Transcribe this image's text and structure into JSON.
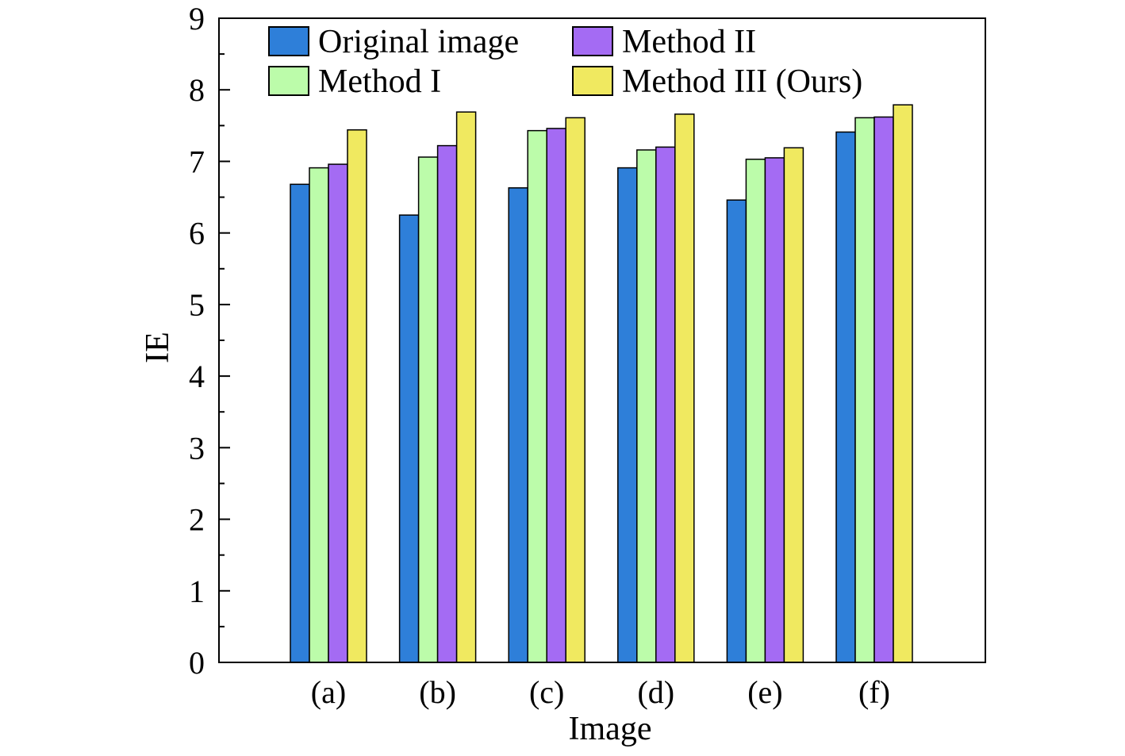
{
  "chart_data": {
    "type": "bar",
    "title": "",
    "xlabel": "Image",
    "ylabel": "IE",
    "ylim": [
      0,
      9
    ],
    "yticks": [
      "0",
      "1",
      "2",
      "3",
      "4",
      "5",
      "6",
      "7",
      "8",
      "9"
    ],
    "categories": [
      "(a)",
      "(b)",
      "(c)",
      "(d)",
      "(e)",
      "(f)"
    ],
    "series": [
      {
        "name": "Original image",
        "color": "#2e7fd9",
        "values": [
          6.68,
          6.25,
          6.63,
          6.91,
          6.46,
          7.41
        ]
      },
      {
        "name": "Method I",
        "color": "#bcfcaa",
        "values": [
          6.91,
          7.06,
          7.43,
          7.16,
          7.03,
          7.61
        ]
      },
      {
        "name": "Method II",
        "color": "#a46bf3",
        "values": [
          6.96,
          7.22,
          7.46,
          7.2,
          7.05,
          7.62
        ]
      },
      {
        "name": "Method III (Ours)",
        "color": "#f0e960",
        "values": [
          7.44,
          7.69,
          7.61,
          7.66,
          7.19,
          7.79
        ]
      }
    ],
    "legend_position": "top",
    "grid": false
  }
}
